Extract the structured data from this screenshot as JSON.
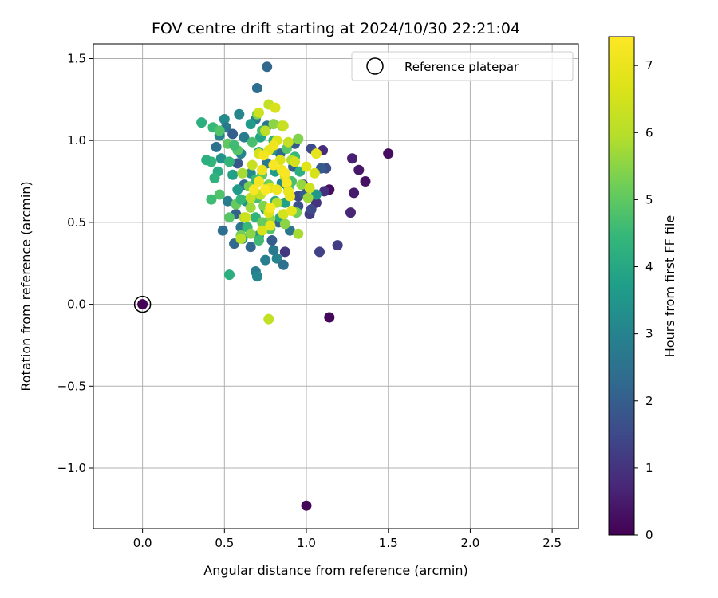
{
  "chart_data": {
    "type": "scatter",
    "title": "FOV centre drift starting at 2024/10/30 22:21:04",
    "xlabel": "Angular distance from reference (arcmin)",
    "ylabel": "Rotation from reference (arcmin)",
    "xlim": [
      -0.3,
      2.66
    ],
    "ylim": [
      -1.37,
      1.59
    ],
    "xticks": [
      0.0,
      0.5,
      1.0,
      1.5,
      2.0,
      2.5
    ],
    "xtick_labels": [
      "0.0",
      "0.5",
      "1.0",
      "1.5",
      "2.0",
      "2.5"
    ],
    "yticks": [
      -1.0,
      -0.5,
      0.0,
      0.5,
      1.0,
      1.5
    ],
    "ytick_labels": [
      "−1.0",
      "−0.5",
      "0.0",
      "0.5",
      "1.0",
      "1.5"
    ],
    "grid": true,
    "legend": {
      "placement": "top-right",
      "entries": [
        "Reference platepar"
      ]
    },
    "reference_point": {
      "x": 0.0,
      "y": 0.0,
      "hours": 0.0
    },
    "colorbar": {
      "label": "Hours from first FF file",
      "colormap": "viridis",
      "range": [
        0,
        7.43
      ],
      "ticks": [
        0,
        1,
        2,
        3,
        4,
        5,
        6,
        7
      ],
      "tick_labels": [
        "0",
        "1",
        "2",
        "3",
        "4",
        "5",
        "6",
        "7"
      ]
    },
    "points": [
      [
        0.0,
        0.0,
        0.05
      ],
      [
        1.0,
        -1.23,
        0.1
      ],
      [
        1.14,
        -0.08,
        0.15
      ],
      [
        1.5,
        0.92,
        0.2
      ],
      [
        1.36,
        0.75,
        0.3
      ],
      [
        1.32,
        0.82,
        0.4
      ],
      [
        1.29,
        0.68,
        0.5
      ],
      [
        1.28,
        0.89,
        0.6
      ],
      [
        1.14,
        0.7,
        0.25
      ],
      [
        1.27,
        0.56,
        0.7
      ],
      [
        1.19,
        0.36,
        1.2
      ],
      [
        1.08,
        0.32,
        1.3
      ],
      [
        0.87,
        0.32,
        1.1
      ],
      [
        1.06,
        0.62,
        1.0
      ],
      [
        1.02,
        0.55,
        1.2
      ],
      [
        1.11,
        0.69,
        0.9
      ],
      [
        1.1,
        0.94,
        0.8
      ],
      [
        1.03,
        0.95,
        1.5
      ],
      [
        1.12,
        0.83,
        1.6
      ],
      [
        0.98,
        0.73,
        1.0
      ],
      [
        0.95,
        0.66,
        1.4
      ],
      [
        0.93,
        0.98,
        1.9
      ],
      [
        0.76,
        1.45,
        2.2
      ],
      [
        0.7,
        1.32,
        2.4
      ],
      [
        0.76,
        1.09,
        2.6
      ],
      [
        0.69,
        1.13,
        2.9
      ],
      [
        0.59,
        1.16,
        3.1
      ],
      [
        0.5,
        1.13,
        3.2
      ],
      [
        0.51,
        1.08,
        2.7
      ],
      [
        0.47,
        1.03,
        3.0
      ],
      [
        0.45,
        0.96,
        2.5
      ],
      [
        0.48,
        0.89,
        3.4
      ],
      [
        0.55,
        1.04,
        2.0
      ],
      [
        0.58,
        0.86,
        1.8
      ],
      [
        0.62,
        0.73,
        2.3
      ],
      [
        0.52,
        0.63,
        2.8
      ],
      [
        0.57,
        0.55,
        2.1
      ],
      [
        0.6,
        0.47,
        2.6
      ],
      [
        0.49,
        0.45,
        2.4
      ],
      [
        0.56,
        0.37,
        2.3
      ],
      [
        0.61,
        0.4,
        3.3
      ],
      [
        0.66,
        0.35,
        2.2
      ],
      [
        0.71,
        0.42,
        3.5
      ],
      [
        0.75,
        0.27,
        2.9
      ],
      [
        0.8,
        0.33,
        2.7
      ],
      [
        0.82,
        0.28,
        3.0
      ],
      [
        0.86,
        0.24,
        2.5
      ],
      [
        0.69,
        0.2,
        2.8
      ],
      [
        0.7,
        0.17,
        3.1
      ],
      [
        0.53,
        0.18,
        4.2
      ],
      [
        0.79,
        0.39,
        2.0
      ],
      [
        0.83,
        0.5,
        2.2
      ],
      [
        0.9,
        0.45,
        2.6
      ],
      [
        0.95,
        0.6,
        1.7
      ],
      [
        0.99,
        0.67,
        2.0
      ],
      [
        1.03,
        0.58,
        1.5
      ],
      [
        1.06,
        0.67,
        3.5
      ],
      [
        1.09,
        0.83,
        1.9
      ],
      [
        0.92,
        0.84,
        2.1
      ],
      [
        0.84,
        0.92,
        2.3
      ],
      [
        0.76,
        0.86,
        2.7
      ],
      [
        0.66,
        0.8,
        3.2
      ],
      [
        0.63,
        0.63,
        3.4
      ],
      [
        0.58,
        0.7,
        3.6
      ],
      [
        0.55,
        0.79,
        3.8
      ],
      [
        0.6,
        0.92,
        3.0
      ],
      [
        0.62,
        1.02,
        2.8
      ],
      [
        0.66,
        1.1,
        3.6
      ],
      [
        0.72,
        1.02,
        3.9
      ],
      [
        0.71,
        0.93,
        4.0
      ],
      [
        0.79,
        0.94,
        3.4
      ],
      [
        0.81,
        0.81,
        3.7
      ],
      [
        0.85,
        0.74,
        3.2
      ],
      [
        0.89,
        0.71,
        4.4
      ],
      [
        0.81,
        0.63,
        4.1
      ],
      [
        0.75,
        0.58,
        3.9
      ],
      [
        0.69,
        0.53,
        4.3
      ],
      [
        0.64,
        0.47,
        4.5
      ],
      [
        0.71,
        0.39,
        4.6
      ],
      [
        0.78,
        0.46,
        4.8
      ],
      [
        0.84,
        0.53,
        4.0
      ],
      [
        0.87,
        0.62,
        3.8
      ],
      [
        0.91,
        0.75,
        4.7
      ],
      [
        0.96,
        0.81,
        4.2
      ],
      [
        0.93,
        0.9,
        4.5
      ],
      [
        0.88,
        0.95,
        4.9
      ],
      [
        0.8,
        1.0,
        4.3
      ],
      [
        0.73,
        1.06,
        4.6
      ],
      [
        0.67,
        0.99,
        4.7
      ],
      [
        0.58,
        0.94,
        4.9
      ],
      [
        0.53,
        0.87,
        4.4
      ],
      [
        0.46,
        0.81,
        4.1
      ],
      [
        0.42,
        0.87,
        4.4
      ],
      [
        0.39,
        0.88,
        4.2
      ],
      [
        0.36,
        1.11,
        4.2
      ],
      [
        0.43,
        1.08,
        4.5
      ],
      [
        0.47,
        1.06,
        4.8
      ],
      [
        0.52,
        0.98,
        5.0
      ],
      [
        0.56,
        0.97,
        4.6
      ],
      [
        0.44,
        0.77,
        4.3
      ],
      [
        0.47,
        0.67,
        4.8
      ],
      [
        0.42,
        0.64,
        4.6
      ],
      [
        0.53,
        0.53,
        4.9
      ],
      [
        0.57,
        0.61,
        5.1
      ],
      [
        0.6,
        0.64,
        4.4
      ],
      [
        0.65,
        0.72,
        5.3
      ],
      [
        0.69,
        0.76,
        4.5
      ],
      [
        0.73,
        0.79,
        5.0
      ],
      [
        0.77,
        0.73,
        5.2
      ],
      [
        0.7,
        0.65,
        4.7
      ],
      [
        0.74,
        0.6,
        5.4
      ],
      [
        0.78,
        0.52,
        5.6
      ],
      [
        0.73,
        0.5,
        5.1
      ],
      [
        0.66,
        0.43,
        5.5
      ],
      [
        0.6,
        0.42,
        5.2
      ],
      [
        0.7,
        1.16,
        5.3
      ],
      [
        0.8,
        1.1,
        5.5
      ],
      [
        0.85,
        1.09,
        5.8
      ],
      [
        0.95,
        1.01,
        5.4
      ],
      [
        0.91,
        0.88,
        5.9
      ],
      [
        0.97,
        0.73,
        5.6
      ],
      [
        1.01,
        0.65,
        5.7
      ],
      [
        0.94,
        0.56,
        5.2
      ],
      [
        0.87,
        0.49,
        5.5
      ],
      [
        0.95,
        0.43,
        5.8
      ],
      [
        0.61,
        0.8,
        5.8
      ],
      [
        0.66,
        0.59,
        5.7
      ],
      [
        0.62,
        0.53,
        5.9
      ],
      [
        0.6,
        0.4,
        6.0
      ],
      [
        0.77,
        1.22,
        6.2
      ],
      [
        0.81,
        1.2,
        6.6
      ],
      [
        0.71,
        1.17,
        6.4
      ],
      [
        0.86,
        1.09,
        6.3
      ],
      [
        0.75,
        1.06,
        6.1
      ],
      [
        0.82,
        1.0,
        6.7
      ],
      [
        0.89,
        0.99,
        6.2
      ],
      [
        0.93,
        0.87,
        6.5
      ],
      [
        1.06,
        0.92,
        6.9
      ],
      [
        1.05,
        0.8,
        6.6
      ],
      [
        1.02,
        0.71,
        6.4
      ],
      [
        1.0,
        0.84,
        6.8
      ],
      [
        0.87,
        0.78,
        6.4
      ],
      [
        0.78,
        0.71,
        6.8
      ],
      [
        0.72,
        0.67,
        6.2
      ],
      [
        0.82,
        0.62,
        6.0
      ],
      [
        0.86,
        0.55,
        6.5
      ],
      [
        0.91,
        0.57,
        6.9
      ],
      [
        0.77,
        0.56,
        6.7
      ],
      [
        0.66,
        0.65,
        6.2
      ],
      [
        0.63,
        0.53,
        6.4
      ],
      [
        0.73,
        0.45,
        6.6
      ],
      [
        0.78,
        0.48,
        6.9
      ],
      [
        0.71,
        0.92,
        6.5
      ],
      [
        0.77,
        0.94,
        6.9
      ],
      [
        0.84,
        0.88,
        6.7
      ],
      [
        0.67,
        0.85,
        6.3
      ],
      [
        0.77,
        -0.09,
        6.2
      ],
      [
        0.8,
        0.97,
        7.1
      ],
      [
        0.8,
        0.85,
        7.3
      ],
      [
        0.73,
        0.82,
        7.0
      ],
      [
        0.85,
        0.82,
        7.2
      ],
      [
        0.88,
        0.74,
        7.3
      ],
      [
        0.9,
        0.66,
        7.0
      ],
      [
        0.82,
        0.7,
        7.1
      ],
      [
        0.75,
        0.7,
        7.4
      ],
      [
        0.71,
        0.75,
        7.2
      ],
      [
        0.78,
        0.59,
        7.3
      ],
      [
        0.74,
        0.91,
        7.2
      ],
      [
        0.68,
        0.7,
        7.3
      ],
      [
        0.89,
        0.69,
        7.0
      ],
      [
        0.87,
        0.8,
        7.3
      ]
    ]
  }
}
